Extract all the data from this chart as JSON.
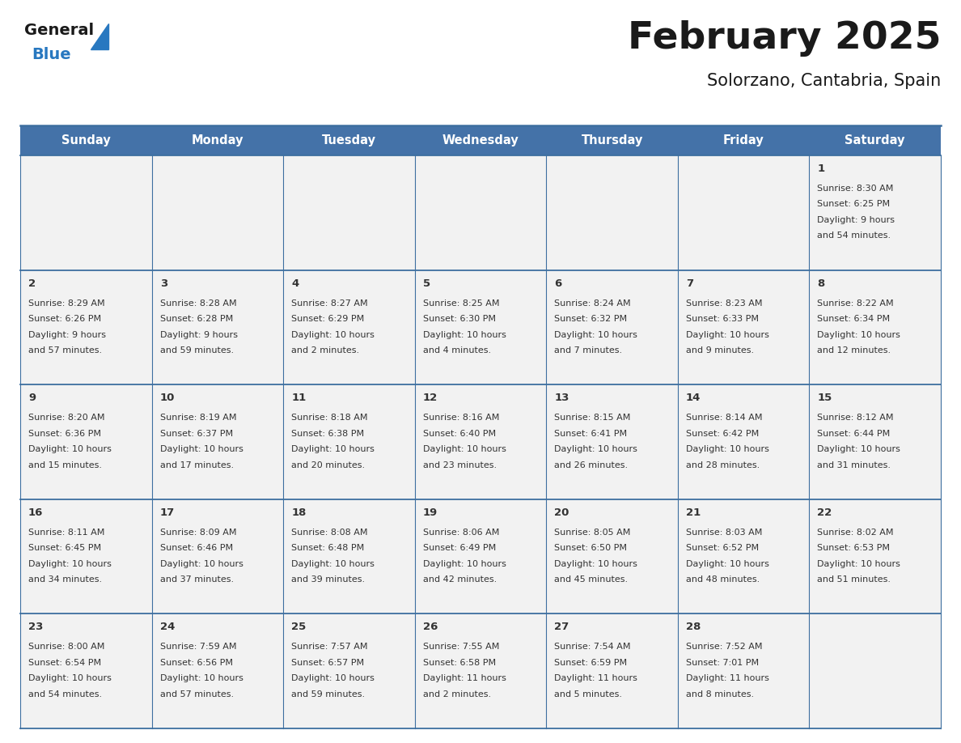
{
  "title": "February 2025",
  "subtitle": "Solorzano, Cantabria, Spain",
  "header_bg": "#4472a8",
  "header_text": "#ffffff",
  "weekdays": [
    "Sunday",
    "Monday",
    "Tuesday",
    "Wednesday",
    "Thursday",
    "Friday",
    "Saturday"
  ],
  "cell_bg": "#f2f2f2",
  "border_color": "#3d6fa0",
  "day_number_color": "#333333",
  "info_text_color": "#333333",
  "title_color": "#1a1a1a",
  "subtitle_color": "#1a1a1a",
  "days": [
    {
      "day": 1,
      "col": 6,
      "row": 0,
      "sunrise": "8:30 AM",
      "sunset": "6:25 PM",
      "daylight": "9 hours and 54 minutes"
    },
    {
      "day": 2,
      "col": 0,
      "row": 1,
      "sunrise": "8:29 AM",
      "sunset": "6:26 PM",
      "daylight": "9 hours and 57 minutes"
    },
    {
      "day": 3,
      "col": 1,
      "row": 1,
      "sunrise": "8:28 AM",
      "sunset": "6:28 PM",
      "daylight": "9 hours and 59 minutes"
    },
    {
      "day": 4,
      "col": 2,
      "row": 1,
      "sunrise": "8:27 AM",
      "sunset": "6:29 PM",
      "daylight": "10 hours and 2 minutes"
    },
    {
      "day": 5,
      "col": 3,
      "row": 1,
      "sunrise": "8:25 AM",
      "sunset": "6:30 PM",
      "daylight": "10 hours and 4 minutes"
    },
    {
      "day": 6,
      "col": 4,
      "row": 1,
      "sunrise": "8:24 AM",
      "sunset": "6:32 PM",
      "daylight": "10 hours and 7 minutes"
    },
    {
      "day": 7,
      "col": 5,
      "row": 1,
      "sunrise": "8:23 AM",
      "sunset": "6:33 PM",
      "daylight": "10 hours and 9 minutes"
    },
    {
      "day": 8,
      "col": 6,
      "row": 1,
      "sunrise": "8:22 AM",
      "sunset": "6:34 PM",
      "daylight": "10 hours and 12 minutes"
    },
    {
      "day": 9,
      "col": 0,
      "row": 2,
      "sunrise": "8:20 AM",
      "sunset": "6:36 PM",
      "daylight": "10 hours and 15 minutes"
    },
    {
      "day": 10,
      "col": 1,
      "row": 2,
      "sunrise": "8:19 AM",
      "sunset": "6:37 PM",
      "daylight": "10 hours and 17 minutes"
    },
    {
      "day": 11,
      "col": 2,
      "row": 2,
      "sunrise": "8:18 AM",
      "sunset": "6:38 PM",
      "daylight": "10 hours and 20 minutes"
    },
    {
      "day": 12,
      "col": 3,
      "row": 2,
      "sunrise": "8:16 AM",
      "sunset": "6:40 PM",
      "daylight": "10 hours and 23 minutes"
    },
    {
      "day": 13,
      "col": 4,
      "row": 2,
      "sunrise": "8:15 AM",
      "sunset": "6:41 PM",
      "daylight": "10 hours and 26 minutes"
    },
    {
      "day": 14,
      "col": 5,
      "row": 2,
      "sunrise": "8:14 AM",
      "sunset": "6:42 PM",
      "daylight": "10 hours and 28 minutes"
    },
    {
      "day": 15,
      "col": 6,
      "row": 2,
      "sunrise": "8:12 AM",
      "sunset": "6:44 PM",
      "daylight": "10 hours and 31 minutes"
    },
    {
      "day": 16,
      "col": 0,
      "row": 3,
      "sunrise": "8:11 AM",
      "sunset": "6:45 PM",
      "daylight": "10 hours and 34 minutes"
    },
    {
      "day": 17,
      "col": 1,
      "row": 3,
      "sunrise": "8:09 AM",
      "sunset": "6:46 PM",
      "daylight": "10 hours and 37 minutes"
    },
    {
      "day": 18,
      "col": 2,
      "row": 3,
      "sunrise": "8:08 AM",
      "sunset": "6:48 PM",
      "daylight": "10 hours and 39 minutes"
    },
    {
      "day": 19,
      "col": 3,
      "row": 3,
      "sunrise": "8:06 AM",
      "sunset": "6:49 PM",
      "daylight": "10 hours and 42 minutes"
    },
    {
      "day": 20,
      "col": 4,
      "row": 3,
      "sunrise": "8:05 AM",
      "sunset": "6:50 PM",
      "daylight": "10 hours and 45 minutes"
    },
    {
      "day": 21,
      "col": 5,
      "row": 3,
      "sunrise": "8:03 AM",
      "sunset": "6:52 PM",
      "daylight": "10 hours and 48 minutes"
    },
    {
      "day": 22,
      "col": 6,
      "row": 3,
      "sunrise": "8:02 AM",
      "sunset": "6:53 PM",
      "daylight": "10 hours and 51 minutes"
    },
    {
      "day": 23,
      "col": 0,
      "row": 4,
      "sunrise": "8:00 AM",
      "sunset": "6:54 PM",
      "daylight": "10 hours and 54 minutes"
    },
    {
      "day": 24,
      "col": 1,
      "row": 4,
      "sunrise": "7:59 AM",
      "sunset": "6:56 PM",
      "daylight": "10 hours and 57 minutes"
    },
    {
      "day": 25,
      "col": 2,
      "row": 4,
      "sunrise": "7:57 AM",
      "sunset": "6:57 PM",
      "daylight": "10 hours and 59 minutes"
    },
    {
      "day": 26,
      "col": 3,
      "row": 4,
      "sunrise": "7:55 AM",
      "sunset": "6:58 PM",
      "daylight": "11 hours and 2 minutes"
    },
    {
      "day": 27,
      "col": 4,
      "row": 4,
      "sunrise": "7:54 AM",
      "sunset": "6:59 PM",
      "daylight": "11 hours and 5 minutes"
    },
    {
      "day": 28,
      "col": 5,
      "row": 4,
      "sunrise": "7:52 AM",
      "sunset": "7:01 PM",
      "daylight": "11 hours and 8 minutes"
    }
  ],
  "logo_general_color": "#1a1a1a",
  "logo_blue_color": "#2878c0",
  "logo_triangle_color": "#2878c0",
  "fig_width": 11.88,
  "fig_height": 9.18,
  "dpi": 100
}
